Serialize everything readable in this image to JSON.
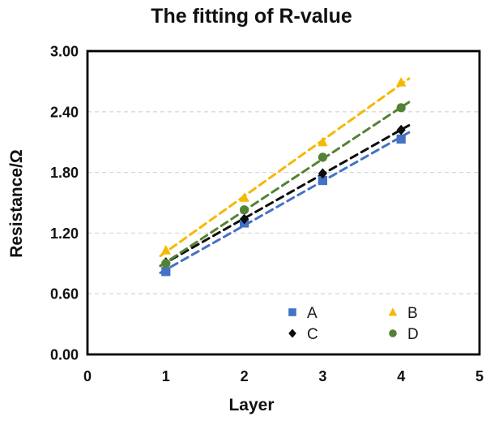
{
  "chart_data": {
    "type": "scatter",
    "title": "The fitting of R-value",
    "xlabel": "Layer",
    "ylabel": "Resistance/Ω",
    "xlim": [
      0,
      5
    ],
    "ylim": [
      0,
      3
    ],
    "x_ticks": [
      {
        "label": "0",
        "value": 0
      },
      {
        "label": "1",
        "value": 1
      },
      {
        "label": "2",
        "value": 2
      },
      {
        "label": "3",
        "value": 3
      },
      {
        "label": "4",
        "value": 4
      },
      {
        "label": "5",
        "value": 5
      }
    ],
    "y_ticks": [
      {
        "label": "0.00",
        "value": 0
      },
      {
        "label": "0.60",
        "value": 0.6
      },
      {
        "label": "1.20",
        "value": 1.2
      },
      {
        "label": "1.80",
        "value": 1.8
      },
      {
        "label": "2.40",
        "value": 2.4
      },
      {
        "label": "3.00",
        "value": 3.0
      }
    ],
    "grid": "horizontal-dashed",
    "grid_color": "#d9d9d9",
    "axis_color": "#000000",
    "trendline_style": "dashed",
    "legend_position": "inside-bottom-center",
    "x": [
      1,
      2,
      3,
      4
    ],
    "series": [
      {
        "name": "A",
        "marker": "square",
        "color": "#4472c4",
        "values": [
          0.82,
          1.3,
          1.72,
          2.13
        ],
        "fit": {
          "slope": 0.438,
          "intercept": 0.4,
          "x_start": 0.93,
          "x_end": 4.1
        }
      },
      {
        "name": "B",
        "marker": "triangle",
        "color": "#f5b800",
        "values": [
          1.03,
          1.55,
          2.1,
          2.69
        ],
        "fit": {
          "slope": 0.553,
          "intercept": 0.46,
          "x_start": 0.93,
          "x_end": 4.1
        }
      },
      {
        "name": "C",
        "marker": "diamond",
        "color": "#0d0d0d",
        "values": [
          0.91,
          1.34,
          1.79,
          2.22
        ],
        "fit": {
          "slope": 0.438,
          "intercept": 0.47,
          "x_start": 0.93,
          "x_end": 4.1
        }
      },
      {
        "name": "D",
        "marker": "circle",
        "color": "#548235",
        "values": [
          0.9,
          1.43,
          1.95,
          2.44
        ],
        "fit": {
          "slope": 0.511,
          "intercept": 0.4,
          "x_start": 0.93,
          "x_end": 4.1
        }
      }
    ],
    "legend": {
      "rows": [
        [
          "A",
          "B"
        ],
        [
          "C",
          "D"
        ]
      ]
    }
  }
}
